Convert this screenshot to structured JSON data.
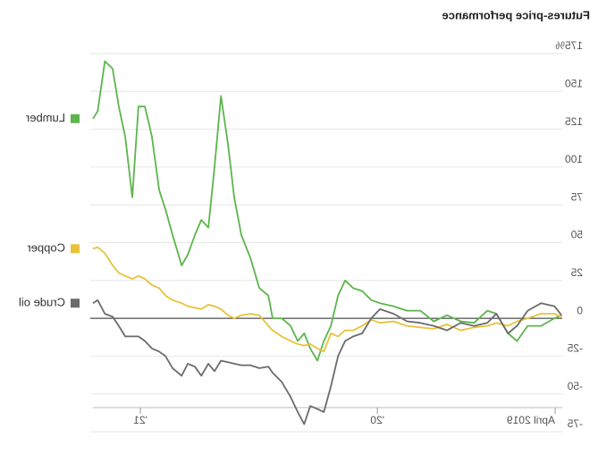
{
  "chart_data": {
    "type": "line",
    "title": "Futures-price performance",
    "x": [
      2021.2,
      2021.18,
      2021.15,
      2021.117,
      2021.091,
      2021.064,
      2021.034,
      2021.008,
      2020.981,
      2020.951,
      2020.921,
      2020.894,
      2020.864,
      2020.826,
      2020.8,
      2020.77,
      2020.743,
      2020.713,
      2020.687,
      2020.66,
      2020.63,
      2020.604,
      2020.574,
      2020.536,
      2020.498,
      2020.46,
      2020.442,
      2020.404,
      2020.366,
      2020.336,
      2020.309,
      2020.283,
      2020.253,
      2020.226,
      2020.196,
      2020.166,
      2020.136,
      2020.102,
      2020.064,
      2020.026,
      2019.989,
      2019.932,
      2019.875,
      2019.819,
      2019.762,
      2019.706,
      2019.649,
      2019.592,
      2019.536,
      2019.498,
      2019.449,
      2019.411,
      2019.366,
      2019.309,
      2019.253,
      2019.223
    ],
    "series": [
      {
        "name": "Lumber",
        "color": "#5cb54c",
        "values": [
          132,
          137,
          170,
          165,
          140,
          120,
          80,
          140,
          140,
          120,
          85,
          72,
          55,
          35,
          42,
          55,
          65,
          60,
          100,
          147,
          115,
          80,
          55,
          40,
          20,
          15,
          0,
          0,
          -5,
          -15,
          -10,
          -20,
          -28,
          -15,
          -5,
          15,
          25,
          20,
          18,
          12,
          10,
          8,
          5,
          5,
          -2,
          2,
          -2,
          -3,
          5,
          3,
          -10,
          -15,
          -5,
          -5,
          0,
          2
        ]
      },
      {
        "name": "Copper",
        "color": "#e8c23a",
        "values": [
          46,
          47,
          43,
          35,
          30,
          28,
          26,
          28,
          26,
          22,
          20,
          15,
          12,
          10,
          8,
          7,
          6,
          9,
          8,
          6,
          2,
          0,
          2,
          3,
          2,
          -5,
          -8,
          -12,
          -15,
          -17,
          -18,
          -17,
          -20,
          -22,
          -10,
          -12,
          -8,
          -8,
          -5,
          -1,
          -3,
          -2,
          -5,
          -6,
          -7,
          -4,
          -8,
          -6,
          -5,
          -3,
          -5,
          -2,
          0,
          3,
          3,
          1
        ]
      },
      {
        "name": "Crude oil",
        "color": "#6b6b6b",
        "values": [
          10,
          12,
          3,
          1,
          -5,
          -12,
          -12,
          -12,
          -15,
          -20,
          -22,
          -25,
          -33,
          -38,
          -30,
          -32,
          -38,
          -30,
          -35,
          -28,
          -29,
          -30,
          -31,
          -31,
          -33,
          -32,
          -36,
          -42,
          -52,
          -62,
          -70,
          -58,
          -60,
          -62,
          -45,
          -25,
          -15,
          -12,
          -10,
          0,
          6,
          3,
          -2,
          -3,
          -5,
          -8,
          -3,
          -5,
          -3,
          3,
          -10,
          -5,
          5,
          10,
          8,
          2
        ]
      }
    ],
    "xlim": [
      2019.22,
      2021.2
    ],
    "xticks": [
      {
        "value": 2019.25,
        "label": "April 2019"
      },
      {
        "value": 2020,
        "label": "'20"
      },
      {
        "value": 2021,
        "label": "'21"
      }
    ],
    "ylim": [
      -75,
      175
    ],
    "yticks": [
      {
        "value": 175,
        "label": "175%"
      },
      150,
      125,
      100,
      75,
      50,
      25,
      0,
      -25,
      -50,
      -75
    ],
    "grid": true,
    "mirrored": true
  }
}
